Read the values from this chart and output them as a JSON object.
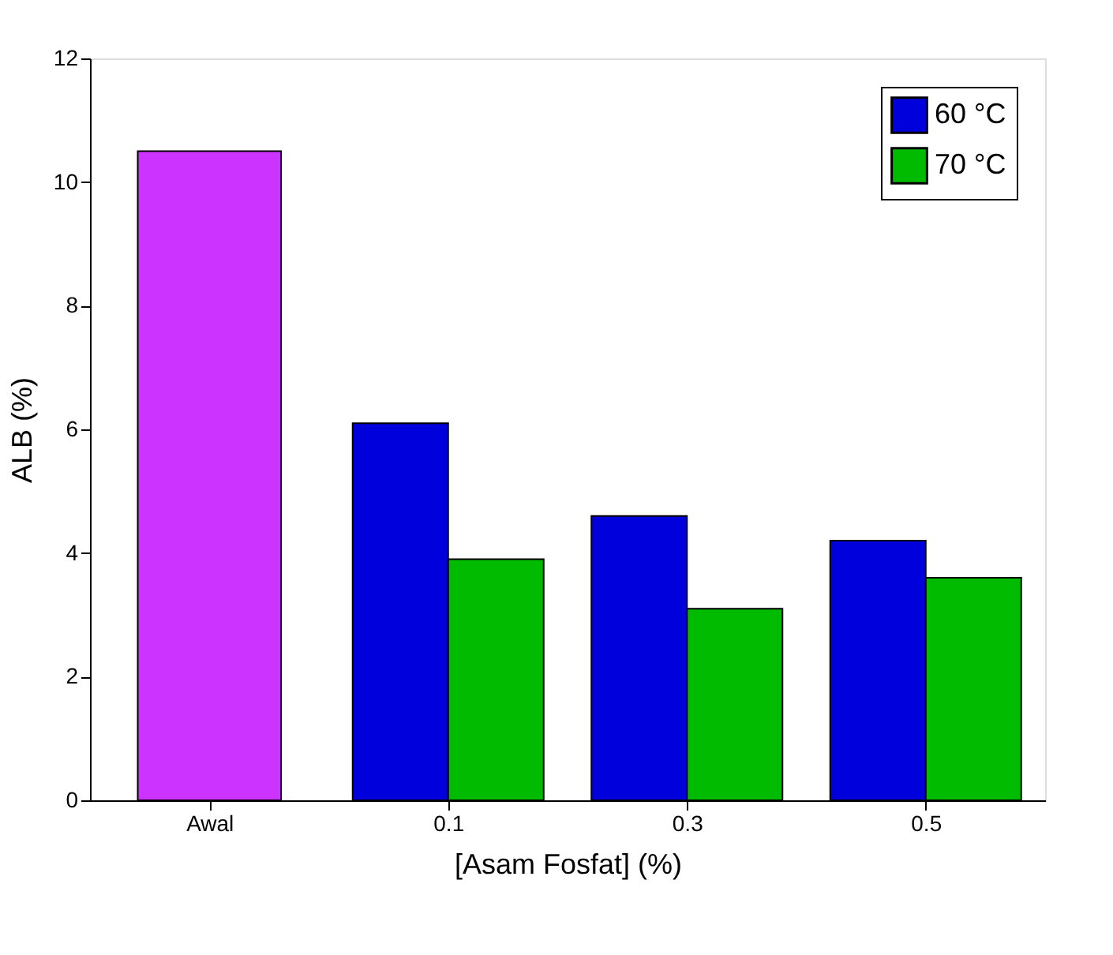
{
  "chart_data": {
    "type": "bar",
    "xlabel": "[Asam Fosfat] (%)",
    "ylabel": "ALB (%)",
    "categories": [
      "Awal",
      "0.1",
      "0.3",
      "0.5"
    ],
    "series": [
      {
        "color": "#cc33ff",
        "values": [
          10.5,
          null,
          null,
          null
        ]
      },
      {
        "name": "60 °C",
        "color": "#0000dd",
        "values": [
          null,
          6.1,
          4.6,
          4.2
        ]
      },
      {
        "name": "70 °C",
        "color": "#00bb00",
        "values": [
          null,
          3.9,
          3.1,
          3.6
        ]
      }
    ],
    "ylim": [
      0,
      12
    ],
    "yticks": [
      0,
      2,
      4,
      6,
      8,
      10,
      12
    ],
    "grid": false,
    "legend": "top right"
  }
}
